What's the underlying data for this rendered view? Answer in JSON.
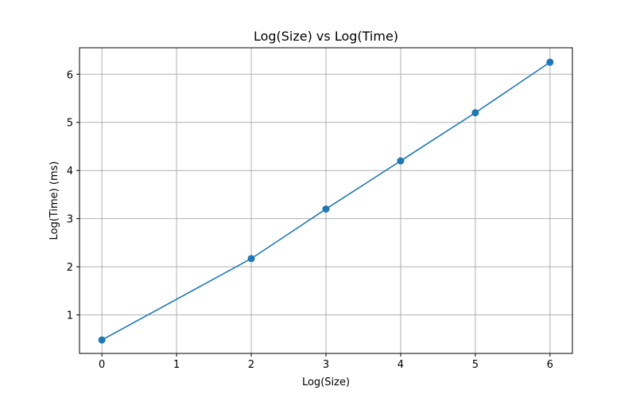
{
  "chart_data": {
    "type": "line",
    "title": "Log(Size) vs Log(Time)",
    "xlabel": "Log(Size)",
    "ylabel": "Log(Time) (ms)",
    "xlim": [
      -0.3,
      6.3
    ],
    "ylim": [
      0.2,
      6.55
    ],
    "xticks": [
      0,
      1,
      2,
      3,
      4,
      5,
      6
    ],
    "yticks": [
      1,
      2,
      3,
      4,
      5,
      6
    ],
    "grid": true,
    "colors": {
      "series": "#1f77b4",
      "grid": "#b0b0b0",
      "axis": "#000000"
    },
    "series": [
      {
        "x": [
          0,
          2,
          3,
          4,
          5,
          6
        ],
        "y": [
          0.48,
          2.17,
          3.2,
          4.2,
          5.2,
          6.25
        ],
        "marker": "circle"
      }
    ]
  }
}
